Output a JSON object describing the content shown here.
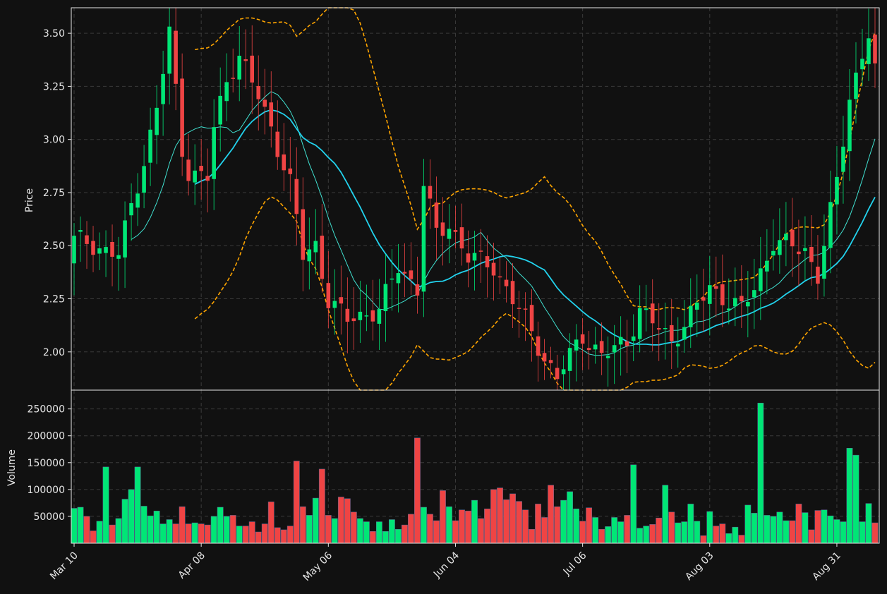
{
  "chart_data": {
    "type": "candlestick",
    "theme": {
      "background": "#111111",
      "frame": "#e6e6e6",
      "grid": "#3a3a3a",
      "text": "#e6e6e6",
      "up": "#00e676",
      "down": "#ef4444",
      "ma_fast": "#40e0d0",
      "ma_slow": "#22d3ee",
      "bands": "#ffa500"
    },
    "x_tick_labels": [
      "Mar 10",
      "Apr 08",
      "May 06",
      "Jun 04",
      "Jul 06",
      "Aug 03",
      "Aug 31"
    ],
    "x_tick_index": [
      0,
      20,
      40,
      60,
      80,
      100,
      120
    ],
    "price_axis": {
      "label": "Price",
      "ticks": [
        "2.00",
        "2.25",
        "2.50",
        "2.75",
        "3.00",
        "3.25",
        "3.50"
      ],
      "tick_values": [
        2.0,
        2.25,
        2.5,
        2.75,
        3.0,
        3.25,
        3.5
      ],
      "range": [
        1.82,
        3.62
      ]
    },
    "volume_axis": {
      "label": "Volume",
      "ticks": [
        "50000",
        "100000",
        "150000",
        "200000",
        "250000"
      ],
      "tick_values": [
        50000,
        100000,
        150000,
        200000,
        250000
      ],
      "range": [
        0,
        285000
      ]
    },
    "close_points": [
      [
        0,
        2.53
      ],
      [
        3,
        2.5
      ],
      [
        7,
        2.46
      ],
      [
        11,
        2.9
      ],
      [
        13,
        3.15
      ],
      [
        15,
        3.5
      ],
      [
        17,
        2.95
      ],
      [
        18,
        2.85
      ],
      [
        21,
        2.82
      ],
      [
        22,
        3.05
      ],
      [
        24,
        3.28
      ],
      [
        26,
        3.4
      ],
      [
        29,
        3.2
      ],
      [
        31,
        3.05
      ],
      [
        34,
        2.8
      ],
      [
        36,
        2.45
      ],
      [
        38,
        2.5
      ],
      [
        40,
        2.25
      ],
      [
        43,
        2.15
      ],
      [
        48,
        2.2
      ],
      [
        51,
        2.4
      ],
      [
        54,
        2.3
      ],
      [
        55,
        2.8
      ],
      [
        57,
        2.55
      ],
      [
        59,
        2.6
      ],
      [
        62,
        2.45
      ],
      [
        66,
        2.4
      ],
      [
        71,
        2.15
      ],
      [
        74,
        1.97
      ],
      [
        76,
        1.88
      ],
      [
        80,
        2.08
      ],
      [
        83,
        1.98
      ],
      [
        87,
        2.05
      ],
      [
        89,
        2.2
      ],
      [
        94,
        2.05
      ],
      [
        100,
        2.3
      ],
      [
        105,
        2.2
      ],
      [
        107,
        2.3
      ],
      [
        110,
        2.52
      ],
      [
        115,
        2.48
      ],
      [
        117,
        2.36
      ],
      [
        120,
        2.8
      ],
      [
        122,
        3.2
      ],
      [
        125,
        3.5
      ],
      [
        126,
        3.32
      ]
    ],
    "high_extra": [
      0.06,
      0.09
    ],
    "volume_values": [
      65000,
      67000,
      50000,
      23000,
      41000,
      142000,
      34000,
      46000,
      82000,
      100000,
      142000,
      69000,
      51000,
      60000,
      36000,
      44000,
      36000,
      68000,
      36000,
      38000,
      36000,
      34000,
      50000,
      67000,
      50000,
      52000,
      32000,
      32000,
      40000,
      21000,
      36000,
      77000,
      29000,
      25000,
      32000,
      153000,
      68000,
      52000,
      84000,
      138000,
      52000,
      46000,
      86000,
      83000,
      58000,
      46000,
      40000,
      22000,
      40000,
      22000,
      44000,
      26000,
      34000,
      54000,
      196000,
      67000,
      54000,
      42000,
      98000,
      68000,
      42000,
      62000,
      60000,
      80000,
      46000,
      64000,
      100000,
      103000,
      81000,
      92000,
      78000,
      62000,
      26000,
      73000,
      48000,
      108000,
      68000,
      80000,
      96000,
      64000,
      41000,
      66000,
      48000,
      26000,
      31000,
      48000,
      40000,
      52000,
      146000,
      28000,
      32000,
      35000,
      47000,
      108000,
      58000,
      38000,
      40000,
      73000,
      41000,
      14000,
      59000,
      32000,
      36000,
      18000,
      30000,
      15000,
      71000,
      56000,
      261000,
      52000,
      50000,
      58000,
      42000,
      42000,
      73000,
      57000,
      25000,
      61000,
      62000,
      51000,
      44000,
      40000,
      177000,
      164000,
      40000,
      74000,
      38000
    ]
  }
}
